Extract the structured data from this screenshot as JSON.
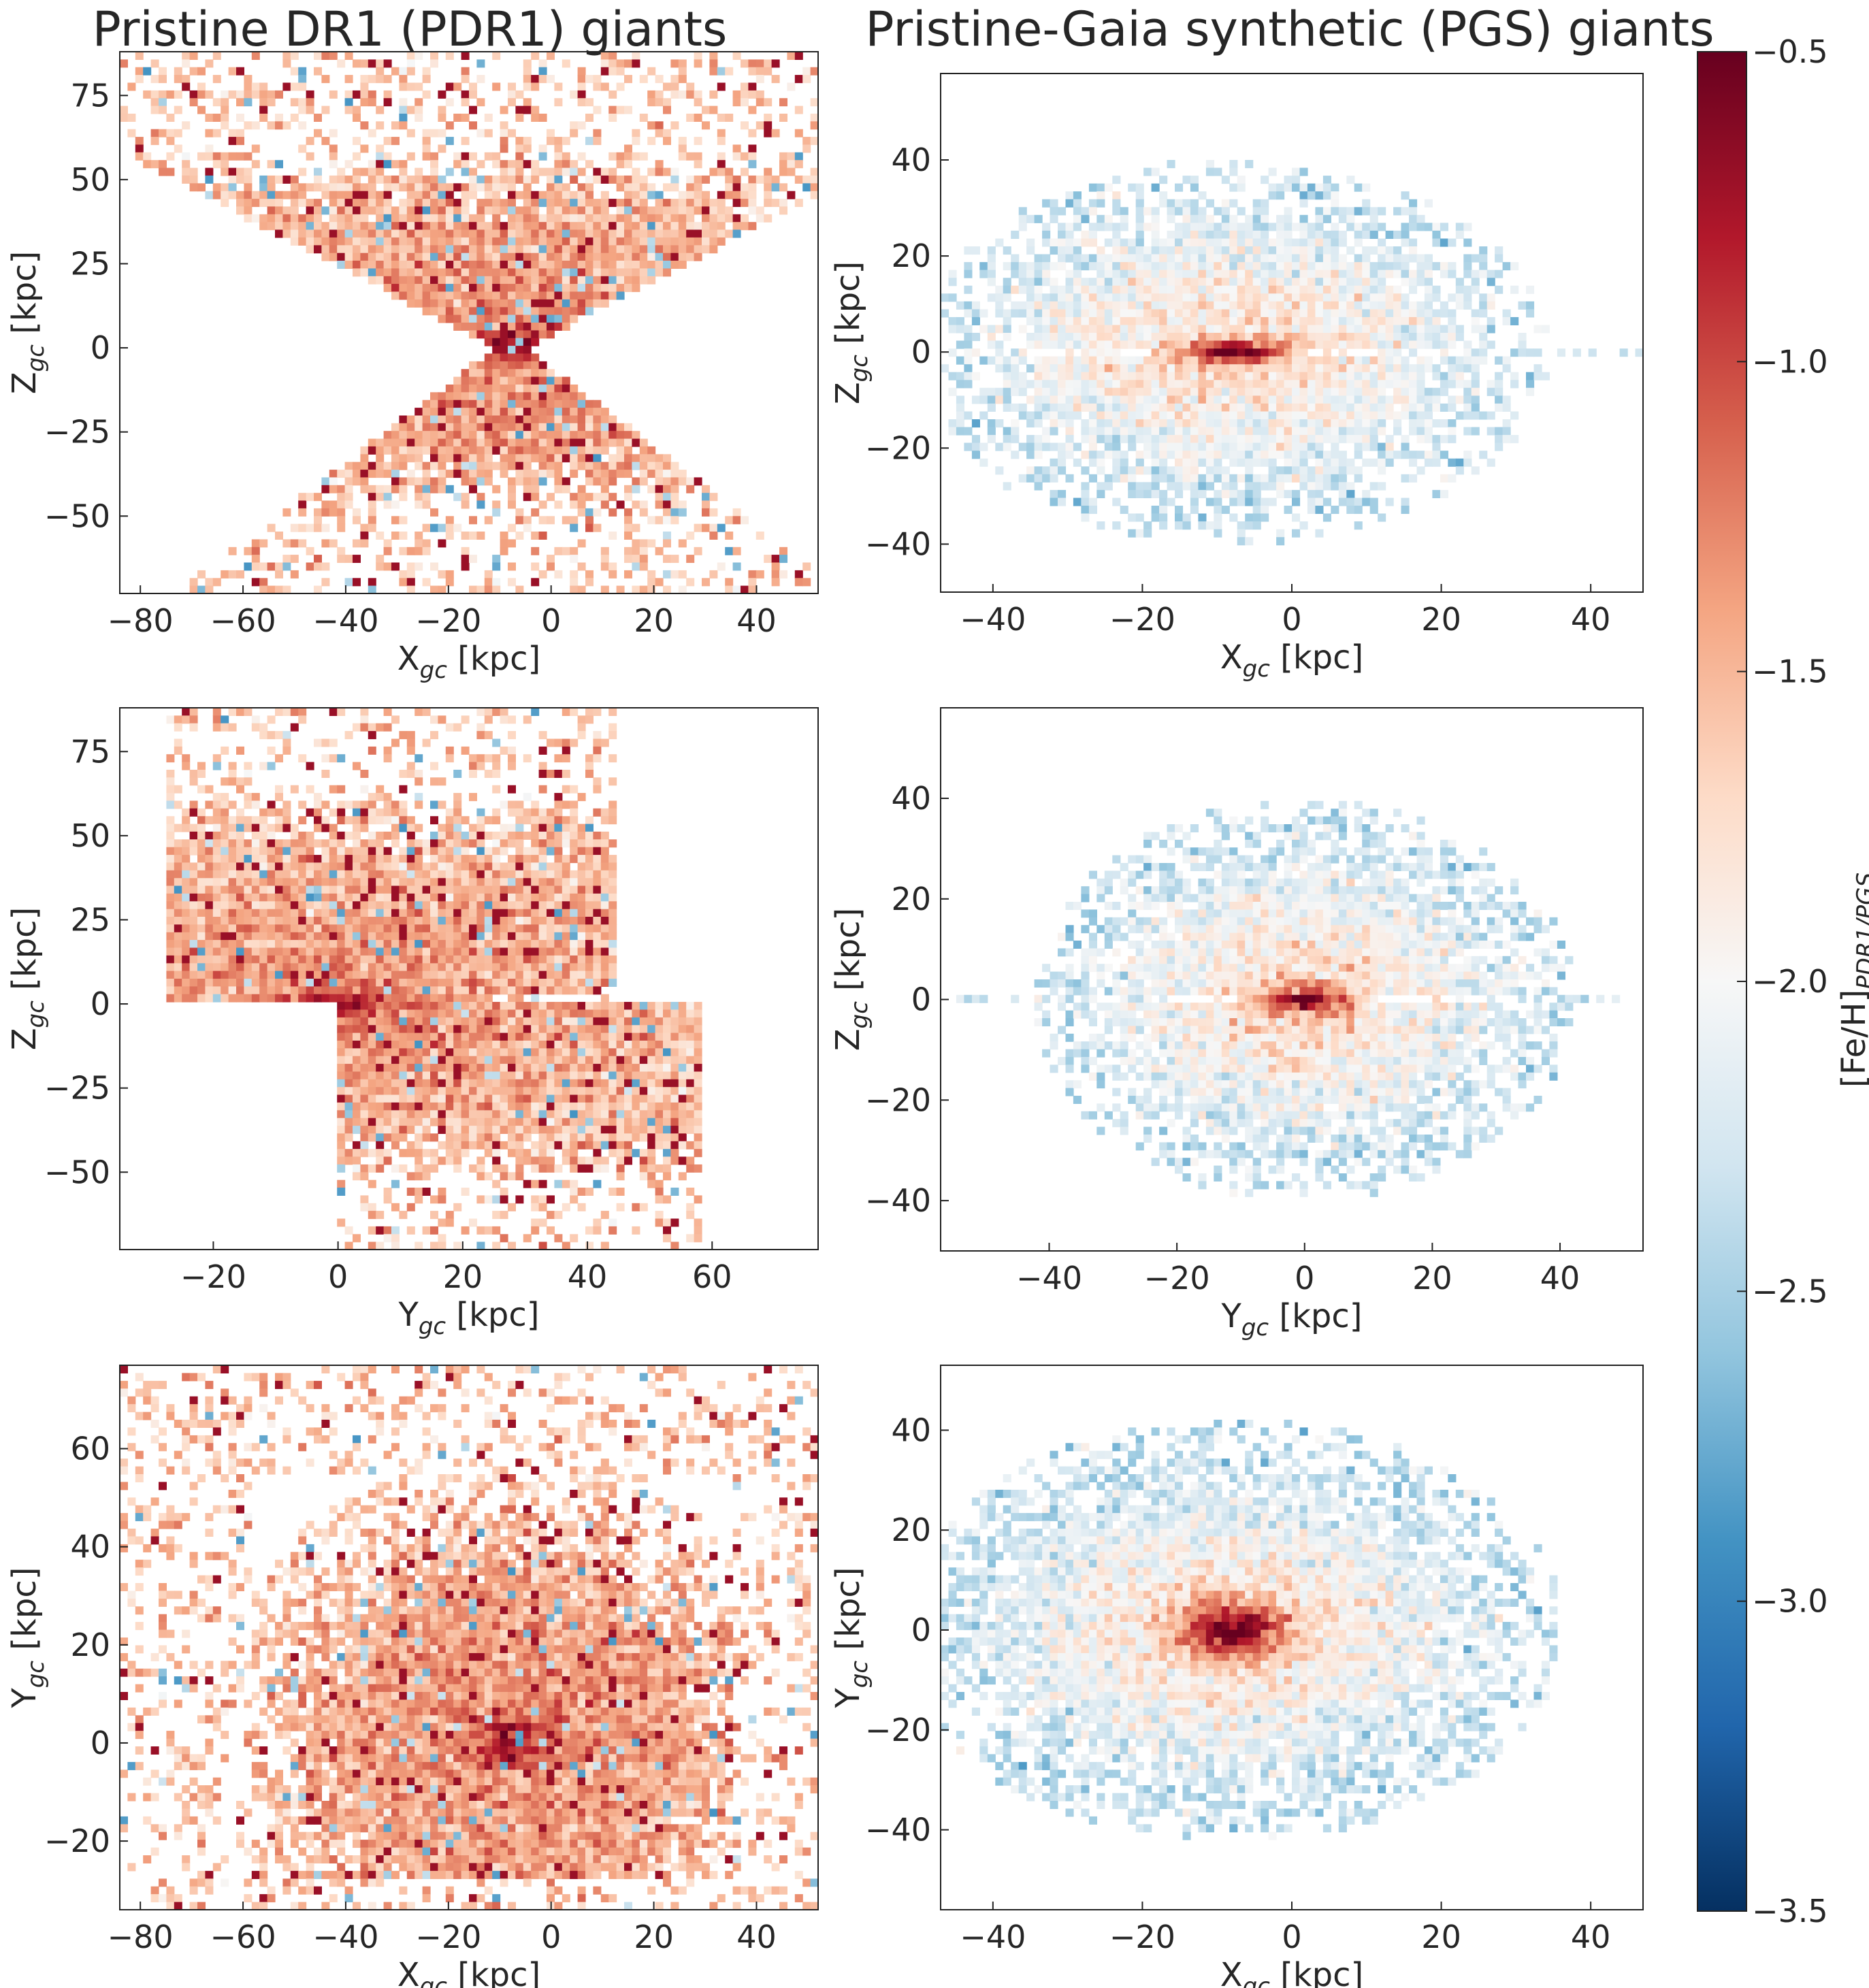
{
  "titles": {
    "left": "Pristine DR1 (PDR1) giants",
    "right": "Pristine-Gaia synthetic (PGS) giants"
  },
  "colorbar": {
    "label": "[Fe/H]",
    "label_sub": "PDR1/PGS",
    "ticks": [
      "−0.5",
      "−1.0",
      "−1.5",
      "−2.0",
      "−2.5",
      "−3.0",
      "−3.5"
    ],
    "range": [
      -3.5,
      -0.5
    ],
    "colormap": "RdBu_r",
    "colors": [
      "#053061",
      "#2166ac",
      "#4393c3",
      "#92c5de",
      "#d1e5f0",
      "#f7f7f7",
      "#fddbc7",
      "#f4a582",
      "#d6604d",
      "#b2182b",
      "#67001f"
    ]
  },
  "chart_data": [
    {
      "id": "pdr1_xz",
      "type": "heatmap",
      "dataset": "PDR1",
      "xlabel": "X",
      "xlabel_sub": "gc",
      "xunit": "[kpc]",
      "ylabel": "Z",
      "ylabel_sub": "gc",
      "yunit": "[kpc]",
      "xlim": [
        -84,
        52
      ],
      "ylim": [
        -73,
        88
      ],
      "xticks": [
        -80,
        -60,
        -40,
        -20,
        0,
        20,
        40
      ],
      "yticks": [
        -50,
        -25,
        0,
        25,
        50,
        75
      ],
      "pattern": "cones",
      "center": [
        -8,
        0
      ],
      "feh_core": -0.6,
      "feh_edge": -1.4
    },
    {
      "id": "pgs_xz",
      "type": "heatmap",
      "dataset": "PGS",
      "xlabel": "X",
      "xlabel_sub": "gc",
      "xunit": "[kpc]",
      "ylabel": "Z",
      "ylabel_sub": "gc",
      "yunit": "[kpc]",
      "xlim": [
        -47,
        47
      ],
      "ylim": [
        -50,
        58
      ],
      "xticks": [
        -40,
        -20,
        0,
        20,
        40
      ],
      "yticks": [
        -40,
        -20,
        0,
        20,
        40
      ],
      "pattern": "halo_disk",
      "center": [
        -8,
        0
      ],
      "feh_core": -0.5,
      "feh_edge": -2.3
    },
    {
      "id": "pdr1_yz",
      "type": "heatmap",
      "dataset": "PDR1",
      "xlabel": "Y",
      "xlabel_sub": "gc",
      "xunit": "[kpc]",
      "ylabel": "Z",
      "ylabel_sub": "gc",
      "yunit": "[kpc]",
      "xlim": [
        -35,
        77
      ],
      "ylim": [
        -73,
        88
      ],
      "xticks": [
        -20,
        0,
        20,
        40,
        60
      ],
      "yticks": [
        -50,
        -25,
        0,
        25,
        50,
        75
      ],
      "pattern": "wedges",
      "center": [
        0,
        0
      ],
      "feh_core": -0.6,
      "feh_edge": -1.4
    },
    {
      "id": "pgs_yz",
      "type": "heatmap",
      "dataset": "PGS",
      "xlabel": "Y",
      "xlabel_sub": "gc",
      "xunit": "[kpc]",
      "ylabel": "Z",
      "ylabel_sub": "gc",
      "yunit": "[kpc]",
      "xlim": [
        -57,
        53
      ],
      "ylim": [
        -50,
        58
      ],
      "xticks": [
        -40,
        -20,
        0,
        20,
        40
      ],
      "yticks": [
        -40,
        -20,
        0,
        20,
        40
      ],
      "pattern": "halo_disk",
      "center": [
        0,
        0
      ],
      "feh_core": -0.5,
      "feh_edge": -2.3
    },
    {
      "id": "pdr1_xy",
      "type": "heatmap",
      "dataset": "PDR1",
      "xlabel": "X",
      "xlabel_sub": "gc",
      "xunit": "[kpc]",
      "ylabel": "Y",
      "ylabel_sub": "gc",
      "yunit": "[kpc]",
      "xlim": [
        -84,
        52
      ],
      "ylim": [
        -34,
        77
      ],
      "xticks": [
        -80,
        -60,
        -40,
        -20,
        0,
        20,
        40
      ],
      "yticks": [
        -20,
        0,
        20,
        40,
        60
      ],
      "pattern": "fan",
      "center": [
        -8,
        0
      ],
      "feh_core": -0.6,
      "feh_edge": -1.4
    },
    {
      "id": "pgs_xy",
      "type": "heatmap",
      "dataset": "PGS",
      "xlabel": "X",
      "xlabel_sub": "gc",
      "xunit": "[kpc]",
      "ylabel": "Y",
      "ylabel_sub": "gc",
      "yunit": "[kpc]",
      "xlim": [
        -47,
        47
      ],
      "ylim": [
        -56,
        53
      ],
      "xticks": [
        -40,
        -20,
        0,
        20,
        40
      ],
      "yticks": [
        -40,
        -20,
        0,
        20,
        40
      ],
      "pattern": "blob",
      "center": [
        -8,
        0
      ],
      "feh_core": -0.5,
      "feh_edge": -2.3
    }
  ]
}
